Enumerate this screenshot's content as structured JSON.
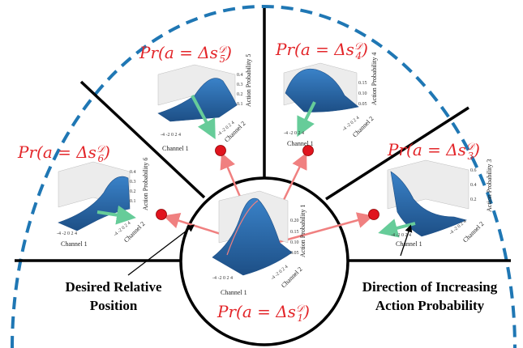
{
  "colors": {
    "dashed_boundary": "#1f77b4",
    "divider": "#000000",
    "surface": "#2f6fb0",
    "surface_dark": "#1d4f86",
    "label": "#e3262a",
    "arrow_red": "#f08080",
    "arrow_green": "#66cc99",
    "marker": "#e0141e"
  },
  "callouts": {
    "left_line1": "Desired Relative",
    "left_line2": "Position",
    "right_line1": "Direction of Increasing",
    "right_line2": "Action Probability"
  },
  "plots": [
    {
      "id": "center",
      "label_base": "Pr(a = Δs",
      "label_sup": "𝒟",
      "label_sub": "1",
      "z_axis_label": "Action Probability 1",
      "z_ticks": [
        "0.20",
        "0.15",
        "0.10",
        "0.05"
      ],
      "x_axis_label": "Channel 1",
      "y_axis_label": "Channel 2",
      "x_ticks": [
        "-4",
        "-2",
        "0",
        "2",
        "4"
      ],
      "y_ticks": [
        "-4",
        "-2",
        "0",
        "2",
        "4"
      ]
    },
    {
      "id": "top-left",
      "label_base": "Pr(a = Δs",
      "label_sup": "𝒟",
      "label_sub": "5",
      "z_axis_label": "Action Probability 5",
      "z_ticks": [
        "0.4",
        "0.3",
        "0.2",
        "0.1"
      ],
      "x_axis_label": "Channel 1",
      "y_axis_label": "Channel 2",
      "x_ticks": [
        "-4",
        "-2",
        "0",
        "2",
        "4"
      ],
      "y_ticks": [
        "-4",
        "-2",
        "0",
        "2",
        "4"
      ]
    },
    {
      "id": "top-right",
      "label_base": "Pr(a = Δs",
      "label_sup": "𝒟",
      "label_sub": "4",
      "z_axis_label": "Action Probability 4",
      "z_ticks": [
        "0.15",
        "0.10",
        "0.05"
      ],
      "x_axis_label": "Channel 1",
      "y_axis_label": "Channel 2",
      "x_ticks": [
        "-4",
        "-2",
        "0",
        "2",
        "4"
      ],
      "y_ticks": [
        "-4",
        "-2",
        "0",
        "2",
        "4"
      ]
    },
    {
      "id": "left",
      "label_base": "Pr(a = Δs",
      "label_sup": "𝒟",
      "label_sub": "6",
      "z_axis_label": "Action Probability 6",
      "z_ticks": [
        "0.4",
        "0.3",
        "0.2",
        "0.1"
      ],
      "x_axis_label": "Channel 1",
      "y_axis_label": "Channel 2",
      "x_ticks": [
        "-4",
        "-2",
        "0",
        "2",
        "4"
      ],
      "y_ticks": [
        "-4",
        "-2",
        "0",
        "2",
        "4"
      ]
    },
    {
      "id": "right",
      "label_base": "Pr(a = Δs",
      "label_sup": "𝒟",
      "label_sub": "3",
      "z_axis_label": "Action Probability 3",
      "z_ticks": [
        "0.6",
        "0.4",
        "0.2"
      ],
      "x_axis_label": "Channel 1",
      "y_axis_label": "Channel 2",
      "x_ticks": [
        "-4",
        "-2",
        "0",
        "2",
        "4"
      ],
      "y_ticks": [
        "-4",
        "-2",
        "0",
        "2",
        "4"
      ]
    }
  ]
}
